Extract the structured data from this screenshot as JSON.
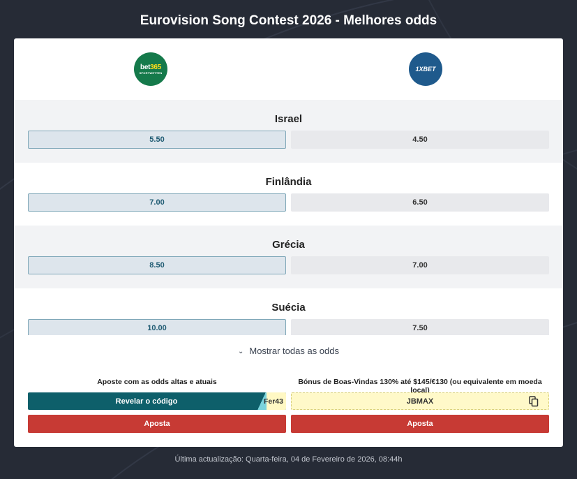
{
  "page": {
    "title": "Eurovision Song Contest 2026 - Melhores odds"
  },
  "bookmakers": [
    {
      "name": "bet365",
      "logo_text_main": "bet",
      "logo_text_accent": "365",
      "logo_subtext": "SPORTWETTEN",
      "color": "#157a4b"
    },
    {
      "name": "1xBet",
      "logo_text": "1XBET",
      "color": "#1f5a8c"
    }
  ],
  "rows": [
    {
      "country": "Israel",
      "odds": [
        "5.50",
        "4.50"
      ]
    },
    {
      "country": "Finlândia",
      "odds": [
        "7.00",
        "6.50"
      ]
    },
    {
      "country": "Grécia",
      "odds": [
        "8.50",
        "7.00"
      ]
    },
    {
      "country": "Suécia",
      "odds": [
        "10.00",
        "7.50"
      ]
    }
  ],
  "show_all": {
    "label": "Mostrar todas as odds"
  },
  "promos": [
    {
      "headline": "Aposte com as odds altas e atuais",
      "reveal_label": "Revelar o código",
      "code_peek": "Fer43",
      "bet_label": "Aposta"
    },
    {
      "headline": "Bónus de Boas-Vindas 130% até $145/€130 (ou equivalente em moeda local)",
      "code": "JBMAX",
      "bet_label": "Aposta"
    }
  ],
  "footer": {
    "updated": "Última actualização: Quarta-feira, 04 de Fevereiro de 2026, 08:44h"
  },
  "colors": {
    "accent_teal": "#0e5f6a",
    "bet_red": "#c73a34",
    "best_odd_border": "#7fa7b8",
    "background": "#262b36"
  }
}
